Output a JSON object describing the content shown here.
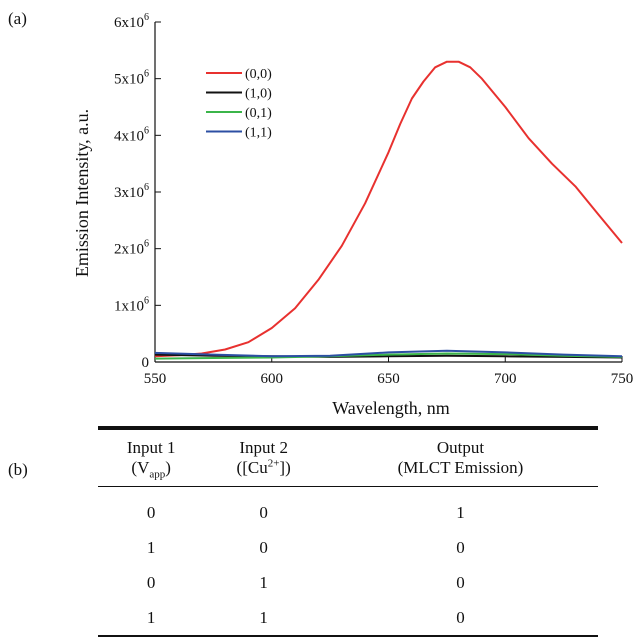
{
  "panel_labels": {
    "a": "(a)",
    "b": "(b)"
  },
  "chart_data": {
    "type": "line",
    "xlabel": "Wavelength, nm",
    "ylabel": "Emission Intensity, a.u.",
    "xlim": [
      550,
      750
    ],
    "ylim": [
      0,
      6000000
    ],
    "xticks": [
      550,
      600,
      650,
      700,
      750
    ],
    "yticks": [
      {
        "value": 0,
        "base": "0",
        "exp": ""
      },
      {
        "value": 1000000,
        "base": "1x10",
        "exp": "6"
      },
      {
        "value": 2000000,
        "base": "2x10",
        "exp": "6"
      },
      {
        "value": 3000000,
        "base": "3x10",
        "exp": "6"
      },
      {
        "value": 4000000,
        "base": "4x10",
        "exp": "6"
      },
      {
        "value": 5000000,
        "base": "5x10",
        "exp": "6"
      },
      {
        "value": 6000000,
        "base": "6x10",
        "exp": "6"
      }
    ],
    "grid": false,
    "legend_position": "top-left",
    "series": [
      {
        "name": "(0,0)",
        "color": "#e8312f",
        "x": [
          550,
          560,
          570,
          580,
          590,
          600,
          610,
          620,
          630,
          640,
          650,
          655,
          660,
          665,
          670,
          675,
          680,
          685,
          690,
          700,
          710,
          720,
          730,
          740,
          750
        ],
        "y": [
          100000,
          120000,
          150000,
          220000,
          350000,
          600000,
          950000,
          1450000,
          2050000,
          2800000,
          3700000,
          4200000,
          4650000,
          4950000,
          5200000,
          5300000,
          5300000,
          5200000,
          5000000,
          4500000,
          3950000,
          3500000,
          3100000,
          2600000,
          2100000
        ]
      },
      {
        "name": "(1,0)",
        "color": "#111111",
        "x": [
          550,
          575,
          600,
          625,
          650,
          675,
          700,
          725,
          750
        ],
        "y": [
          130000,
          110000,
          100000,
          90000,
          100000,
          110000,
          100000,
          90000,
          80000
        ]
      },
      {
        "name": "(0,1)",
        "color": "#3bb54a",
        "x": [
          550,
          575,
          600,
          625,
          650,
          675,
          700,
          725,
          750
        ],
        "y": [
          60000,
          70000,
          80000,
          100000,
          130000,
          150000,
          140000,
          110000,
          90000
        ]
      },
      {
        "name": "(1,1)",
        "color": "#2c4fa3",
        "x": [
          550,
          575,
          600,
          625,
          650,
          675,
          700,
          725,
          750
        ],
        "y": [
          160000,
          130000,
          100000,
          110000,
          170000,
          200000,
          170000,
          130000,
          100000
        ]
      }
    ]
  },
  "table": {
    "headers": [
      {
        "line1": "Input 1",
        "line2_pre": "(V",
        "line2_sub": "app",
        "line2_sup": "",
        "line2_post": ")"
      },
      {
        "line1": "Input 2",
        "line2_pre": "([Cu",
        "line2_sub": "",
        "line2_sup": "2+",
        "line2_post": "])"
      },
      {
        "line1": "Output",
        "line2_pre": "(MLCT Emission)",
        "line2_sub": "",
        "line2_sup": "",
        "line2_post": ""
      }
    ],
    "rows": [
      [
        "0",
        "0",
        "1"
      ],
      [
        "1",
        "0",
        "0"
      ],
      [
        "0",
        "1",
        "0"
      ],
      [
        "1",
        "1",
        "0"
      ]
    ]
  }
}
